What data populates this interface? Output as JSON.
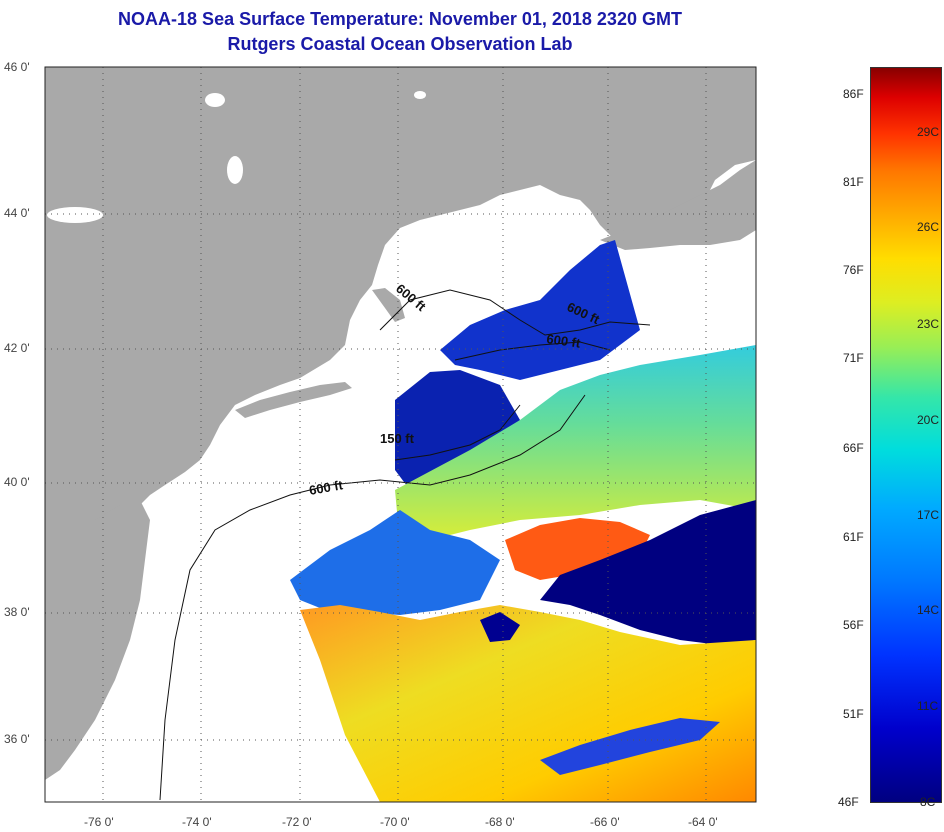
{
  "title_line1": "NOAA-18 Sea Surface Temperature:  November 01, 2018 2320 GMT",
  "title_line2": "Rutgers Coastal Ocean Observation Lab",
  "lat_ticks": [
    "46 0'",
    "44 0'",
    "42 0'",
    "40 0'",
    "38 0'",
    "36 0'"
  ],
  "lon_ticks": [
    "-76 0'",
    "-74 0'",
    "-72 0'",
    "-70 0'",
    "-68 0'",
    "-66 0'",
    "-64 0'"
  ],
  "contour_labels": [
    "600 ft",
    "600 ft",
    "600 ft",
    "150 ft",
    "600 ft"
  ],
  "colorbar_f": [
    "86F",
    "81F",
    "76F",
    "71F",
    "66F",
    "61F",
    "56F",
    "51F",
    "46F"
  ],
  "colorbar_c": [
    "29C",
    "26C",
    "23C",
    "20C",
    "17C",
    "14C",
    "11C",
    "8C"
  ],
  "colors": {
    "land": "#a9a9a9",
    "water_nodata": "#ffffff",
    "title": "#1a1aa8",
    "cold": "#000080",
    "warm": "#ff5500"
  }
}
